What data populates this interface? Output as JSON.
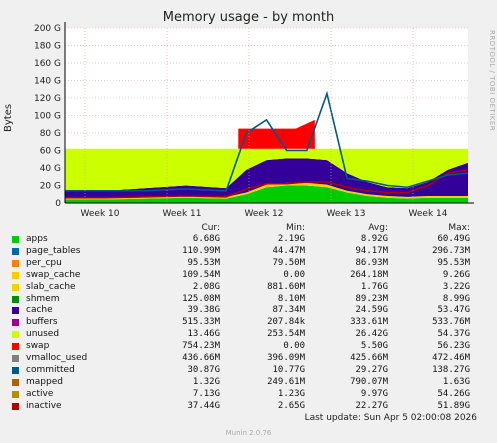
{
  "chart_data": {
    "type": "area",
    "title": "Memory usage - by month",
    "ylabel": "Bytes",
    "ylim": [
      0,
      200
    ],
    "y_ticks": [
      "0",
      "20 G",
      "40 G",
      "60 G",
      "80 G",
      "100 G",
      "120 G",
      "140 G",
      "160 G",
      "180 G",
      "200 G"
    ],
    "x_ticks": [
      "Week 10",
      "Week 11",
      "Week 12",
      "Week 13",
      "Week 14"
    ],
    "side_credit": "RRDTOOL / TOBI OETIKER",
    "columns": [
      "Cur:",
      "Min:",
      "Avg:",
      "Max:"
    ],
    "legend": [
      {
        "name": "apps",
        "color": "#00cc00",
        "cur": "6.68G",
        "min": "2.19G",
        "avg": "8.92G",
        "max": "60.49G"
      },
      {
        "name": "page_tables",
        "color": "#0066b3",
        "cur": "110.99M",
        "min": "44.47M",
        "avg": "94.17M",
        "max": "296.73M"
      },
      {
        "name": "per_cpu",
        "color": "#ff8000",
        "cur": "95.53M",
        "min": "79.50M",
        "avg": "86.93M",
        "max": "95.53M"
      },
      {
        "name": "swap_cache",
        "color": "#ffcc00",
        "cur": "109.54M",
        "min": "0.00",
        "avg": "264.18M",
        "max": "9.26G"
      },
      {
        "name": "slab_cache",
        "color": "#ffcc00",
        "cur": "2.08G",
        "min": "881.60M",
        "avg": "1.76G",
        "max": "3.22G"
      },
      {
        "name": "shmem",
        "color": "#008f00",
        "cur": "125.08M",
        "min": "8.10M",
        "avg": "89.23M",
        "max": "8.99G"
      },
      {
        "name": "cache",
        "color": "#330099",
        "cur": "39.38G",
        "min": "87.34M",
        "avg": "24.59G",
        "max": "53.47G"
      },
      {
        "name": "buffers",
        "color": "#990099",
        "cur": "515.33M",
        "min": "207.84k",
        "avg": "333.61M",
        "max": "533.76M"
      },
      {
        "name": "unused",
        "color": "#ccff00",
        "cur": "13.46G",
        "min": "253.54M",
        "avg": "26.42G",
        "max": "54.37G"
      },
      {
        "name": "swap",
        "color": "#ff0000",
        "cur": "754.23M",
        "min": "0.00",
        "avg": "5.50G",
        "max": "56.23G"
      },
      {
        "name": "vmalloc_used",
        "color": "#808080",
        "cur": "436.66M",
        "min": "396.09M",
        "avg": "425.66M",
        "max": "472.46M"
      },
      {
        "name": "committed",
        "color": "#005a89",
        "cur": "30.87G",
        "min": "10.77G",
        "avg": "29.27G",
        "max": "138.27G"
      },
      {
        "name": "mapped",
        "color": "#b36000",
        "cur": "1.32G",
        "min": "249.61M",
        "avg": "790.07M",
        "max": "1.63G"
      },
      {
        "name": "active",
        "color": "#b38f00",
        "cur": "7.13G",
        "min": "1.23G",
        "avg": "9.97G",
        "max": "54.26G"
      },
      {
        "name": "inactive",
        "color": "#b30000",
        "cur": "37.44G",
        "min": "2.65G",
        "avg": "22.27G",
        "max": "51.89G"
      }
    ],
    "x_index": [
      0,
      10,
      20,
      30,
      40,
      45,
      50,
      55,
      60,
      65,
      70,
      75,
      80,
      85,
      90,
      95,
      100
    ],
    "stack": [
      {
        "name": "apps",
        "values": [
          4,
          4,
          5,
          6,
          5,
          10,
          18,
          20,
          20,
          18,
          12,
          8,
          6,
          5,
          6,
          6,
          6
        ]
      },
      {
        "name": "slab_cache",
        "values": [
          2,
          2,
          2,
          2,
          2,
          2,
          3,
          3,
          3,
          3,
          2,
          2,
          2,
          2,
          2,
          2,
          2
        ]
      },
      {
        "name": "cache",
        "values": [
          8,
          8,
          10,
          12,
          10,
          26,
          28,
          28,
          28,
          28,
          20,
          14,
          10,
          10,
          16,
          30,
          38
        ]
      },
      {
        "name": "unused",
        "values": [
          48,
          48,
          45,
          42,
          45,
          24,
          13,
          11,
          11,
          13,
          28,
          38,
          44,
          45,
          38,
          24,
          16
        ]
      }
    ],
    "swap_band": {
      "name": "swap",
      "x_range": [
        43,
        62
      ],
      "top_values": [
        85,
        85,
        85,
        85,
        95
      ]
    },
    "committed_line": {
      "name": "committed",
      "values": [
        14,
        14,
        14,
        16,
        14,
        80,
        95,
        60,
        60,
        125,
        28,
        25,
        20,
        18,
        25,
        32,
        34
      ]
    },
    "inactive_line": {
      "name": "inactive",
      "values": [
        6,
        6,
        7,
        8,
        7,
        16,
        22,
        22,
        24,
        24,
        18,
        14,
        12,
        12,
        20,
        34,
        38
      ]
    },
    "last_update": "Last update:  Sun Apr  5 02:00:08 2026",
    "footer": "Munin 2.0.76"
  }
}
